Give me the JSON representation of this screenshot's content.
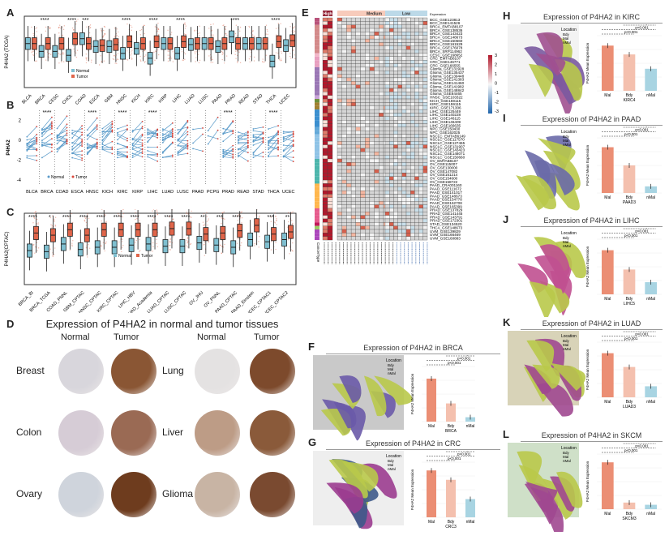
{
  "panels": {
    "A": "A",
    "B": "B",
    "C": "C",
    "D": "D",
    "E": "E",
    "F": "F",
    "G": "G",
    "H": "H",
    "I": "I",
    "J": "J",
    "K": "K",
    "L": "L"
  },
  "colors": {
    "normal": "#7fbfd0",
    "tumor": "#e0654a",
    "mal": "#eb8e74",
    "bdy": "#f4c0ae",
    "nmal": "#a8d4e2"
  },
  "chart_data": [
    {
      "id": "A",
      "type": "box",
      "ylabel": "P4HA2 (TCGA)",
      "ylim": [
        -4.5,
        2.8
      ],
      "legend": [
        "Normal",
        "Tumor"
      ],
      "legend_placement": "inside-bottom-left",
      "categories": [
        "BLCA",
        "BRCA",
        "CESC",
        "CHOL",
        "COAD",
        "ESCA",
        "GBM",
        "HNSC",
        "KICH",
        "KIRC",
        "KIRP",
        "LIHC",
        "LUAD",
        "LUSC",
        "PAAD",
        "PRAD",
        "READ",
        "STAD",
        "THCA",
        "UCEC"
      ],
      "normal_median": [
        0,
        -0.8,
        -0.8,
        -1.2,
        0.5,
        -0.3,
        -0.3,
        -1,
        -0.5,
        -1.5,
        0,
        -1,
        -0.1,
        0,
        -0.3,
        0.7,
        0,
        0,
        -1.8,
        -0.2
      ],
      "tumor_median": [
        0,
        0,
        0,
        0.5,
        0,
        -0.2,
        -0.1,
        0.2,
        0,
        0.2,
        0,
        0.2,
        0,
        0,
        0,
        0,
        0,
        0,
        0.2,
        0.3
      ],
      "significance": [
        "",
        "****",
        "",
        "****",
        "***",
        "",
        "",
        "****",
        "",
        "****",
        "",
        "****",
        "",
        "",
        "",
        "****",
        "",
        "",
        "****",
        ""
      ]
    },
    {
      "id": "B",
      "type": "paired-line",
      "ylabel": "P4HA2",
      "ylim": [
        -4.5,
        3
      ],
      "yticks": [
        -4,
        -2,
        0,
        2
      ],
      "legend": [
        "Normal",
        "Tumor"
      ],
      "categories": [
        "BLCA",
        "BRCA",
        "COAD",
        "ESCA",
        "HNSC",
        "KICH",
        "KIRC",
        "KIRP",
        "LIHC",
        "LUAD",
        "LUSC",
        "PAAD",
        "PCPG",
        "PRAD",
        "READ",
        "STAD",
        "THCA",
        "UCEC"
      ],
      "significance": [
        "",
        "****",
        "",
        "",
        "****",
        "",
        "****",
        "",
        "****",
        "",
        "",
        "",
        "",
        "****",
        "",
        "",
        "****",
        ""
      ]
    },
    {
      "id": "C",
      "type": "box",
      "ylabel": "P4HA2(CPTAC)",
      "ylim": [
        -4.5,
        2
      ],
      "legend": [
        "Normal",
        "Tumor"
      ],
      "categories": [
        "BRCA_BI",
        "BRCA_TCGA",
        "COAD_PNNL",
        "GBM_CPTAC",
        "HNSC_CPTAC",
        "KIRC_CPTAC",
        "LIHC_HBV",
        "LUAD_Academia",
        "LUAD_CPTAC",
        "LUSC_CPTAC",
        "OV_JHU",
        "OV_PNNL",
        "PAAD_CPTAC",
        "PAAD_Einstein",
        "UCEC_CPTAC1",
        "UCEC_CPTAC2"
      ],
      "normal_median": [
        -1.4,
        -1.5,
        -0.8,
        -1.3,
        -1.1,
        -1.1,
        -0.9,
        -0.8,
        -1,
        -1,
        -0.7,
        -0.9,
        -1.1,
        -0.4,
        -0.6,
        -0.4
      ],
      "tumor_median": [
        0.2,
        0,
        0.5,
        0,
        0.5,
        0.5,
        0.5,
        0.5,
        0.6,
        0.6,
        0.1,
        0.2,
        0.4,
        0.9,
        0.1,
        0.3
      ],
      "significance": [
        "****",
        "*",
        "****",
        "****",
        "****",
        "****",
        "****",
        "****",
        "****",
        "****",
        "**",
        "***",
        "****",
        "",
        "***",
        "**"
      ]
    },
    {
      "id": "F",
      "type": "bar",
      "title": "Expression of P4HA2 in BRCA",
      "xlabel": "BRCA",
      "ylabel": "P4HA2 Mean Expression",
      "categories": [
        "Mal",
        "Bdy",
        "nMal"
      ],
      "values": [
        0.78,
        0.33,
        0.08
      ],
      "pvalues": [
        "p<0.001",
        "p<0.001",
        "p<0.001"
      ],
      "legend_title": "Location",
      "legend": [
        "Bdy",
        "Mal",
        "nMal"
      ]
    },
    {
      "id": "G",
      "type": "bar",
      "title": "Expression of P4HA2 in CRC",
      "xlabel": "CRC3",
      "ylabel": "P4HA2 Mean Expression",
      "categories": [
        "Mal",
        "Bdy",
        "nMal"
      ],
      "values": [
        0.85,
        0.68,
        0.33
      ],
      "pvalues": [
        "p<0.001",
        "p<0.001",
        "p<0.001"
      ],
      "legend_title": "Location",
      "legend": [
        "Bdy",
        "Mal",
        "nMal"
      ]
    },
    {
      "id": "H",
      "type": "bar",
      "title": "Expression of P4HA2 in KIRC",
      "xlabel": "KIRC4",
      "ylabel": "P4HA2 Mean Expression",
      "categories": [
        "Mal",
        "Bdy",
        "nMal"
      ],
      "values": [
        0.82,
        0.66,
        0.4
      ],
      "pvalues": [
        "p<0.001",
        "p<0.001",
        "p<0.001"
      ],
      "legend_title": "Location",
      "legend": [
        "Bdy",
        "Mal",
        "nMal"
      ]
    },
    {
      "id": "I",
      "type": "bar",
      "title": "Expression of P4HA2 in PAAD",
      "xlabel": "PAAD3",
      "ylabel": "P4HA2 Mean Expression",
      "categories": [
        "Mal",
        "Bdy",
        "nMal"
      ],
      "values": [
        0.83,
        0.5,
        0.12
      ],
      "pvalues": [
        "p<0.001",
        "p<0.001",
        "p<0.001"
      ],
      "legend_title": "Location",
      "legend": [
        "Bdy",
        "Mal",
        "nMal"
      ]
    },
    {
      "id": "J",
      "type": "bar",
      "title": "Expression of P4HA2 in LIHC",
      "xlabel": "LIHC5",
      "ylabel": "P4HA2 Mean Expression",
      "categories": [
        "Mal",
        "Bdy",
        "nMal"
      ],
      "values": [
        0.8,
        0.45,
        0.22
      ],
      "pvalues": [
        "p<0.001",
        "p<0.001",
        "p<0.001"
      ],
      "legend_title": "Location",
      "legend": [
        "Bdy",
        "Mal",
        "nMal"
      ]
    },
    {
      "id": "K",
      "type": "bar",
      "title": "Expression of P4HA2 in LUAD",
      "xlabel": "LUAD3",
      "ylabel": "P4HA2 Mean Expression",
      "categories": [
        "Mal",
        "Bdy",
        "nMal"
      ],
      "values": [
        0.8,
        0.55,
        0.2
      ],
      "pvalues": [
        "p<0.001",
        "p<0.001",
        "0.003"
      ],
      "legend_title": "Location",
      "legend": [
        "Bdy",
        "Mal",
        "nMal"
      ]
    },
    {
      "id": "L",
      "type": "bar",
      "title": "Expression of P4HA2 in SKCM",
      "xlabel": "SKCM3",
      "ylabel": "P4HA2 Mean Expression",
      "categories": [
        "Mal",
        "Bdy",
        "nMal"
      ],
      "values": [
        0.85,
        0.12,
        0.08
      ],
      "pvalues": [
        "p<0.001",
        "p<0.001",
        "0.427"
      ],
      "legend_title": "Location",
      "legend": [
        "Bdy",
        "Mal",
        "nMal"
      ]
    }
  ],
  "D": {
    "title": "Expression of P4HA2 in normal and tumor tissues",
    "col_normal": "Normal",
    "col_tumor": "Tumor",
    "left": [
      "Breast",
      "Colon",
      "Ovary"
    ],
    "right": [
      "Lung",
      "Liver",
      "Glioma"
    ]
  },
  "E": {
    "groups": [
      "High",
      "Medium",
      "Low"
    ],
    "legend_title": "Expression",
    "legend_ticks": [
      "3",
      "2",
      "1",
      "0",
      "-1",
      "-2",
      "-3"
    ],
    "annotation_label": "CancerType",
    "rows": [
      "BCC_GSE123813",
      "BCC_GSE141526",
      "BRCA_EMTAB8107",
      "BRCA_GSE138536",
      "BRCA_GSE143423",
      "BRCA_GSE148673",
      "BRCA_GSE150660",
      "BRCA_GSE161529",
      "BRCA_GSE176078",
      "BRCA_SRP114962",
      "CESC_GSE168652",
      "CRC_EMTAB8107",
      "CRC_GSE146771",
      "CRC_GSE166555",
      "Glioma_GSE131928",
      "Glioma_GSE135437",
      "Glioma_GSE139448",
      "Glioma_GSE141383",
      "Glioma_GSE141460",
      "Glioma_GSE141982",
      "Glioma_GSE148842",
      "Glioma_GSE84465",
      "HNSC_GSE103322",
      "KICH_GSE159115",
      "KIRC_GSE159115",
      "KIRC_GSE171306",
      "LIHC_GSE125449",
      "LIHC_GSE140228",
      "LIHC_GSE146115",
      "LIHC_GSE146409",
      "LIHC_GSE166635",
      "NPC_GSE150430",
      "NPC_GSE162025",
      "NSCLC_EMTAB6149",
      "NSCLC_GSE117570",
      "NSCLC_GSE127465",
      "NSCLC_GSE131907",
      "NSCLC_GSE143423",
      "NSCLC_GSE148071",
      "NSCLC_GSE150660",
      "OV_EMTAB8107",
      "OV_GSE115007",
      "OV_GSE130000",
      "OV_GSE147082",
      "OV_GSE151214",
      "OV_GSE154600",
      "OV_GSE158722",
      "PAAD_CRA001160",
      "PAAD_GSE111672",
      "PAAD_GSE141017",
      "PAAD_GSE148673",
      "PAAD_GSE154778",
      "PAAD_GSE162708",
      "PAAD_GSE165399",
      "PRAD_GSE137829",
      "PRAD_GSE141445",
      "PRAD_GSE143791",
      "PRAD_GSE172301",
      "STAD_GSE134520",
      "THCA_GSE148673",
      "UVM_GSE139829",
      "UVM_GSE166469",
      "UVM_GSE160883"
    ]
  }
}
